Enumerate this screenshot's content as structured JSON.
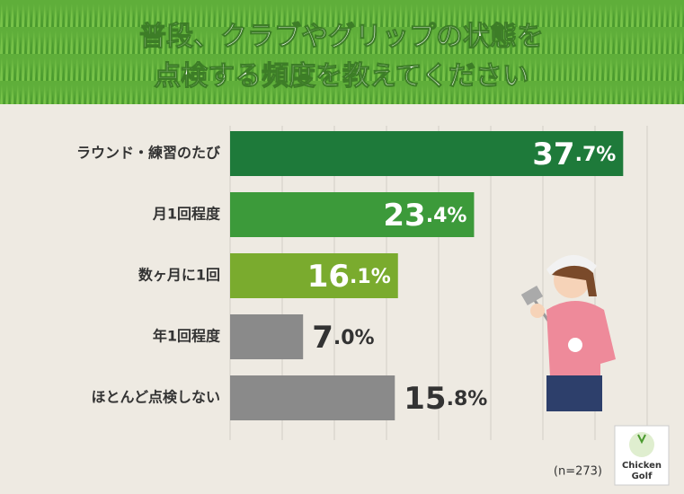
{
  "chart_data": {
    "type": "barh",
    "title": [
      "普段、クラブやグリップの状態を",
      "点検する頻度を教えてください"
    ],
    "categories": [
      "ラウンド・練習のたび",
      "月1回程度",
      "数ヶ月に1回",
      "年1回程度",
      "ほとんど点検しない"
    ],
    "values": [
      37.7,
      23.4,
      16.1,
      7.0,
      15.8
    ],
    "value_labels": [
      "37.7%",
      "23.4%",
      "16.1%",
      "7.0%",
      "15.8%"
    ],
    "colors": [
      "#1e7a3a",
      "#3c9a3a",
      "#7aab2e",
      "#8a8a8a",
      "#8a8a8a"
    ],
    "xlim": [
      0,
      40
    ],
    "xticks": [
      0,
      5,
      10,
      15,
      20,
      25,
      30,
      35,
      40
    ],
    "grid": true,
    "note": "(n=273)",
    "logo": [
      "Chicken",
      "Golf"
    ]
  }
}
